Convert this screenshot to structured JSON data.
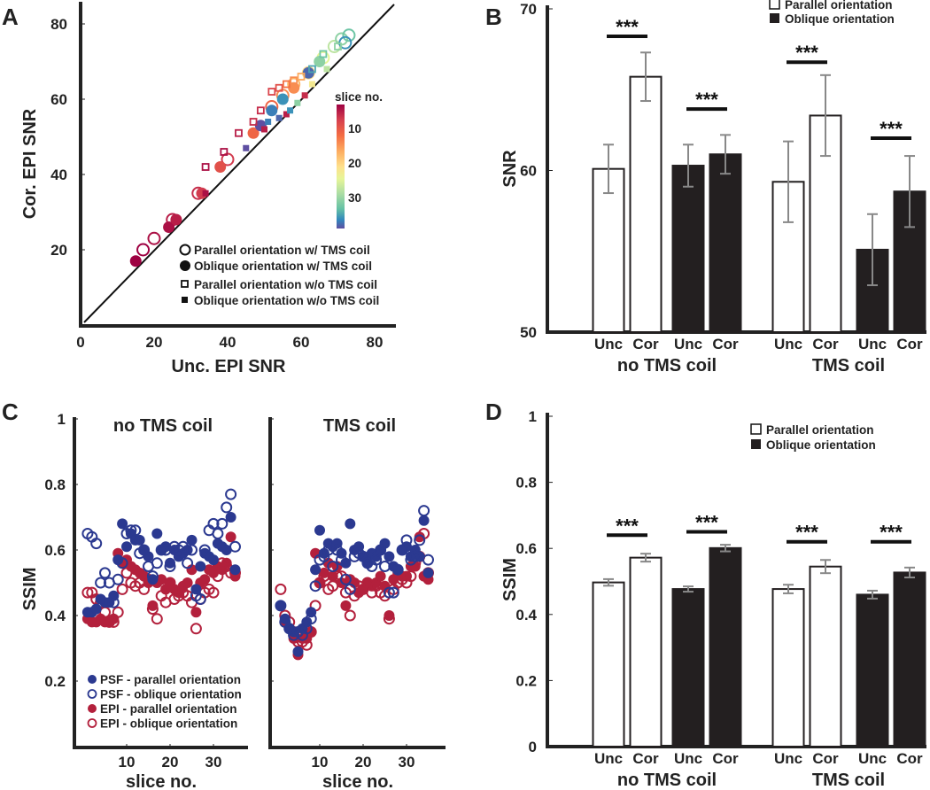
{
  "chart_data": [
    {
      "panel": "A",
      "type": "scatter",
      "xlabel": "Unc. EPI SNR",
      "ylabel": "Cor. EPI SNR",
      "xlim": [
        0,
        85
      ],
      "ylim": [
        0,
        85
      ],
      "xticks": [
        "0",
        "20",
        "40",
        "60",
        "80"
      ],
      "yticks": [
        "20",
        "40",
        "60",
        "80"
      ],
      "identity_line": true,
      "colorbar": {
        "label": "slice no.",
        "ticks": [
          "10",
          "20",
          "30"
        ],
        "range": [
          1,
          36
        ]
      },
      "series": [
        {
          "name": "Parallel orientation w/ TMS coil",
          "marker": "open-circle",
          "points": [
            [
              17,
              20,
              1
            ],
            [
              20,
              23,
              2
            ],
            [
              25,
              28,
              3
            ],
            [
              32,
              35,
              4
            ],
            [
              40,
              44,
              5
            ],
            [
              52,
              58,
              9
            ],
            [
              55,
              61,
              12
            ],
            [
              58,
              64,
              15
            ],
            [
              62,
              67,
              18
            ],
            [
              66,
              71,
              22
            ],
            [
              69,
              74,
              25
            ],
            [
              71,
              76,
              28
            ],
            [
              73,
              77,
              30
            ],
            [
              72,
              75,
              33
            ]
          ]
        },
        {
          "name": "Oblique orientation w/ TMS coil",
          "marker": "filled-circle",
          "points": [
            [
              15,
              17,
              1
            ],
            [
              24,
              26,
              2
            ],
            [
              26,
              28,
              3
            ],
            [
              33,
              35,
              5
            ],
            [
              38,
              42,
              7
            ],
            [
              47,
              51,
              9
            ],
            [
              49,
              53,
              36
            ],
            [
              52,
              57,
              34
            ],
            [
              55,
              60,
              33
            ],
            [
              58,
              63,
              12
            ],
            [
              62,
              67,
              35
            ],
            [
              65,
              70,
              28
            ]
          ]
        },
        {
          "name": "Parallel orientation w/o TMS coil",
          "marker": "open-square",
          "points": [
            [
              34,
              42,
              2
            ],
            [
              39,
              46,
              2
            ],
            [
              43,
              51,
              3
            ],
            [
              47,
              54,
              4
            ],
            [
              49,
              57,
              4
            ],
            [
              52,
              62,
              6
            ],
            [
              54,
              63,
              7
            ],
            [
              56,
              64,
              10
            ],
            [
              58,
              65,
              12
            ],
            [
              60,
              66,
              14
            ],
            [
              63,
              68,
              32
            ],
            [
              66,
              72,
              30
            ],
            [
              70,
              74,
              28
            ]
          ]
        },
        {
          "name": "Oblique orientation w/o TMS coil",
          "marker": "filled-square",
          "points": [
            [
              34,
              35,
              2
            ],
            [
              45,
              47,
              36
            ],
            [
              50,
              52,
              3
            ],
            [
              51,
              54,
              34
            ],
            [
              54,
              55,
              35
            ],
            [
              56,
              56,
              3
            ],
            [
              57,
              57,
              33
            ],
            [
              59,
              59,
              28
            ],
            [
              61,
              61,
              4
            ],
            [
              63,
              64,
              20
            ],
            [
              67,
              68,
              25
            ]
          ]
        }
      ]
    },
    {
      "panel": "B",
      "type": "bar",
      "ylabel": "SNR",
      "ylim": [
        50,
        70
      ],
      "yticks": [
        "50",
        "60",
        "70"
      ],
      "categories": [
        "Unc",
        "Cor",
        "Unc",
        "Cor",
        "Unc",
        "Cor",
        "Unc",
        "Cor"
      ],
      "groups": [
        "no TMS coil",
        "TMS coil"
      ],
      "legend": [
        "Parallel orientation",
        "Oblique orientation"
      ],
      "bars": [
        {
          "group": "no TMS coil",
          "orientation": "Parallel",
          "label": "Unc",
          "value": 60.1,
          "error": 1.5
        },
        {
          "group": "no TMS coil",
          "orientation": "Parallel",
          "label": "Cor",
          "value": 65.8,
          "error": 1.5
        },
        {
          "group": "no TMS coil",
          "orientation": "Oblique",
          "label": "Unc",
          "value": 60.3,
          "error": 1.3
        },
        {
          "group": "no TMS coil",
          "orientation": "Oblique",
          "label": "Cor",
          "value": 61.0,
          "error": 1.2
        },
        {
          "group": "TMS coil",
          "orientation": "Parallel",
          "label": "Unc",
          "value": 59.3,
          "error": 2.5
        },
        {
          "group": "TMS coil",
          "orientation": "Parallel",
          "label": "Cor",
          "value": 63.4,
          "error": 2.5
        },
        {
          "group": "TMS coil",
          "orientation": "Oblique",
          "label": "Unc",
          "value": 55.1,
          "error": 2.2
        },
        {
          "group": "TMS coil",
          "orientation": "Oblique",
          "label": "Cor",
          "value": 58.7,
          "error": 2.2
        }
      ],
      "significance": [
        "***",
        "***",
        "***",
        "***"
      ],
      "significance_level": [
        68.3,
        63.8,
        66.7,
        62.0
      ]
    },
    {
      "panel": "C",
      "type": "scatter",
      "ylabel": "SSIM",
      "xlabel": "slice no.",
      "ylim": [
        0,
        1
      ],
      "yticks": [
        "0.2",
        "0.4",
        "0.6",
        "0.8",
        "1"
      ],
      "xticks": [
        "10",
        "20",
        "30"
      ],
      "legend": [
        "PSF - parallel orientation",
        "PSF - oblique orientation",
        "EPI - parallel orientation",
        "EPI - oblique orientation"
      ],
      "colors": {
        "psf": "#2b3990",
        "epi": "#b3203c"
      },
      "subplots": [
        {
          "title": "no TMS coil",
          "psf_parallel": [
            0.41,
            0.41,
            0.42,
            0.45,
            0.44,
            0.44,
            0.46,
            0.57,
            0.68,
            0.61,
            0.65,
            0.63,
            0.63,
            0.6,
            0.58,
            0.51,
            0.65,
            0.6,
            0.61,
            0.56,
            0.6,
            0.58,
            0.59,
            0.6,
            0.63,
            0.48,
            0.55,
            0.59,
            0.58,
            0.57,
            0.62,
            0.61,
            0.6,
            0.7,
            0.54
          ],
          "psf_oblique": [
            0.65,
            0.64,
            0.62,
            0.5,
            0.53,
            0.5,
            0.44,
            0.51,
            0.56,
            0.65,
            0.66,
            0.66,
            0.59,
            0.6,
            0.55,
            0.52,
            0.56,
            0.6,
            0.6,
            0.55,
            0.61,
            0.6,
            0.61,
            0.56,
            0.6,
            0.46,
            0.45,
            0.6,
            0.66,
            0.68,
            0.65,
            0.68,
            0.73,
            0.77,
            0.61
          ],
          "epi_parallel": [
            0.39,
            0.38,
            0.38,
            0.39,
            0.38,
            0.38,
            0.39,
            0.59,
            0.56,
            0.57,
            0.55,
            0.54,
            0.53,
            0.52,
            0.5,
            0.43,
            0.5,
            0.51,
            0.48,
            0.5,
            0.48,
            0.47,
            0.49,
            0.5,
            0.54,
            0.41,
            0.5,
            0.51,
            0.54,
            0.53,
            0.55,
            0.54,
            0.56,
            0.64,
            0.52
          ],
          "epi_oblique": [
            0.47,
            0.47,
            0.45,
            0.44,
            0.41,
            0.38,
            0.38,
            0.41,
            0.48,
            0.53,
            0.5,
            0.49,
            0.5,
            0.48,
            0.51,
            0.42,
            0.39,
            0.46,
            0.44,
            0.5,
            0.45,
            0.46,
            0.47,
            0.46,
            0.44,
            0.36,
            0.45,
            0.47,
            0.48,
            0.47,
            0.52,
            0.56,
            0.55,
            0.53,
            0.53
          ]
        },
        {
          "title": "TMS coil",
          "psf_parallel": [
            0.43,
            0.39,
            0.36,
            0.35,
            0.29,
            0.36,
            0.38,
            0.41,
            0.54,
            0.66,
            0.59,
            0.62,
            0.61,
            0.62,
            0.59,
            0.56,
            0.68,
            0.6,
            0.61,
            0.58,
            0.56,
            0.59,
            0.58,
            0.6,
            0.62,
            0.58,
            0.55,
            0.54,
            0.6,
            0.61,
            0.58,
            0.6,
            0.58,
            0.69,
            0.53
          ],
          "psf_oblique": [
            0.43,
            0.38,
            0.36,
            0.34,
            0.35,
            0.34,
            0.36,
            0.39,
            0.49,
            0.57,
            0.58,
            0.6,
            0.55,
            0.6,
            0.57,
            0.51,
            0.48,
            0.58,
            0.59,
            0.58,
            0.56,
            0.55,
            0.57,
            0.6,
            0.55,
            0.47,
            0.47,
            0.54,
            0.6,
            0.63,
            0.57,
            0.58,
            0.63,
            0.72,
            0.57
          ],
          "epi_parallel": [
            0.43,
            0.38,
            0.36,
            0.33,
            0.28,
            0.33,
            0.33,
            0.35,
            0.59,
            0.5,
            0.53,
            0.56,
            0.52,
            0.55,
            0.5,
            0.43,
            0.51,
            0.5,
            0.47,
            0.48,
            0.5,
            0.49,
            0.5,
            0.52,
            0.49,
            0.4,
            0.51,
            0.53,
            0.52,
            0.52,
            0.55,
            0.55,
            0.64,
            0.52,
            0.51
          ],
          "epi_oblique": [
            0.48,
            0.4,
            0.38,
            0.35,
            0.32,
            0.32,
            0.31,
            0.35,
            0.43,
            0.5,
            0.52,
            0.48,
            0.49,
            0.52,
            0.52,
            0.47,
            0.4,
            0.46,
            0.49,
            0.48,
            0.5,
            0.47,
            0.49,
            0.47,
            0.46,
            0.39,
            0.48,
            0.5,
            0.51,
            0.5,
            0.52,
            0.56,
            0.58,
            0.65,
            0.53
          ]
        }
      ]
    },
    {
      "panel": "D",
      "type": "bar",
      "ylabel": "SSIM",
      "ylim": [
        0,
        1
      ],
      "yticks": [
        "0",
        "0.2",
        "0.4",
        "0.6",
        "0.8",
        "1"
      ],
      "categories": [
        "Unc",
        "Cor",
        "Unc",
        "Cor",
        "Unc",
        "Cor",
        "Unc",
        "Cor"
      ],
      "groups": [
        "no TMS coil",
        "TMS coil"
      ],
      "legend": [
        "Parallel orientation",
        "Oblique orientation"
      ],
      "bars": [
        {
          "group": "no TMS coil",
          "orientation": "Parallel",
          "label": "Unc",
          "value": 0.497,
          "error": 0.01
        },
        {
          "group": "no TMS coil",
          "orientation": "Parallel",
          "label": "Cor",
          "value": 0.572,
          "error": 0.012
        },
        {
          "group": "no TMS coil",
          "orientation": "Oblique",
          "label": "Unc",
          "value": 0.477,
          "error": 0.008
        },
        {
          "group": "no TMS coil",
          "orientation": "Oblique",
          "label": "Cor",
          "value": 0.601,
          "error": 0.01
        },
        {
          "group": "TMS coil",
          "orientation": "Parallel",
          "label": "Unc",
          "value": 0.477,
          "error": 0.013
        },
        {
          "group": "TMS coil",
          "orientation": "Parallel",
          "label": "Cor",
          "value": 0.545,
          "error": 0.02
        },
        {
          "group": "TMS coil",
          "orientation": "Oblique",
          "label": "Unc",
          "value": 0.46,
          "error": 0.012
        },
        {
          "group": "TMS coil",
          "orientation": "Oblique",
          "label": "Cor",
          "value": 0.527,
          "error": 0.015
        }
      ],
      "significance": [
        "***",
        "***",
        "***",
        "***"
      ],
      "significance_level": [
        0.64,
        0.65,
        0.62,
        0.62
      ]
    }
  ],
  "panel_labels": [
    "A",
    "B",
    "C",
    "D"
  ]
}
